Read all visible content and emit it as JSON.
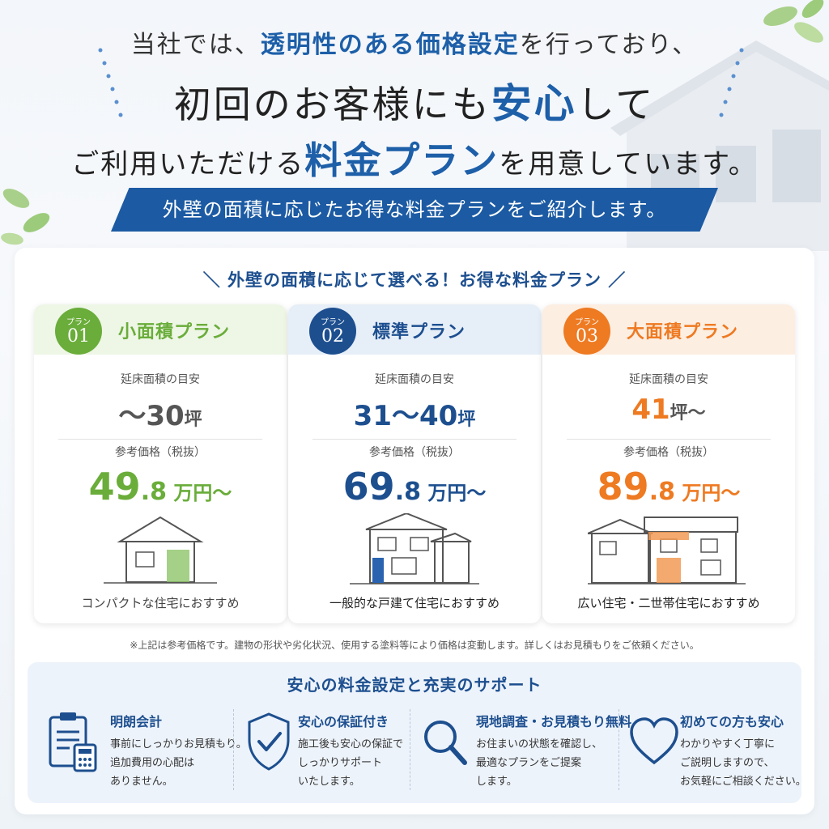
{
  "hero": {
    "line1_pre": "当社では、",
    "line1_hl": "透明性のある価格設定",
    "line1_post": "を行っており、",
    "line2_pre": "初回のお客様にも",
    "line2_hl": "安心",
    "line2_post": "して",
    "line3_pre": "ご利用いただける",
    "line3_hl": "料金プラン",
    "line3_post": "を用意しています。",
    "ribbon": "外壁の面積に応じたお得な料金プランをご紹介します。"
  },
  "plans_section": {
    "title": "＼ 外壁の面積に応じて選べる！お得な料金プラン ／",
    "plans": [
      {
        "badge_small": "プラン",
        "badge_num": "01",
        "name": "小面積プラン",
        "area_label": "延床面積の目安",
        "area_pre": "～",
        "area_num": "30",
        "area_unit": "坪",
        "area_post": "",
        "price_label": "参考価格（税抜）",
        "price_int": "49",
        "price_dec": ".8",
        "price_unit": " 万円～",
        "recommend": "コンパクトな住宅におすすめ",
        "color": "#6aad3a",
        "head_bg": "#eef6e6"
      },
      {
        "badge_small": "プラン",
        "badge_num": "02",
        "name": "標準プラン",
        "area_label": "延床面積の目安",
        "area_pre": "",
        "area_num": "31～40",
        "area_unit": "坪",
        "area_post": "",
        "price_label": "参考価格（税抜）",
        "price_int": "69",
        "price_dec": ".8",
        "price_unit": " 万円～",
        "recommend": "一般的な戸建て住宅におすすめ",
        "color": "#1d4f8f",
        "head_bg": "#e6eef8"
      },
      {
        "badge_small": "プラン",
        "badge_num": "03",
        "name": "大面積プラン",
        "area_label": "延床面積の目安",
        "area_pre": "",
        "area_num": "41",
        "area_unit": "坪",
        "area_post": "～",
        "price_label": "参考価格（税抜）",
        "price_int": "89",
        "price_dec": ".8",
        "price_unit": " 万円～",
        "recommend": "広い住宅・二世帯住宅におすすめ",
        "color": "#ee7a22",
        "head_bg": "#fdeee2"
      }
    ],
    "note": "※上記は参考価格です。建物の形状や劣化状況、使用する塗料等により価格は変動します。詳しくはお見積もりをご依頼ください。"
  },
  "support": {
    "title": "安心の料金設定と充実のサポート",
    "items": [
      {
        "icon": "clipboard-calculator-icon",
        "head": "明朗会計",
        "lines": [
          "事前にしっかりお見積もり。",
          "追加費用の心配は",
          "ありません。"
        ]
      },
      {
        "icon": "shield-check-icon",
        "head": "安心の保証付き",
        "lines": [
          "施工後も安心の保証で",
          "しっかりサポート",
          "いたします。"
        ]
      },
      {
        "icon": "magnifier-icon",
        "head": "現地調査・お見積もり無料",
        "lines": [
          "お住まいの状態を確認し、",
          "最適なプランをご提案",
          "します。"
        ]
      },
      {
        "icon": "heart-icon",
        "head": "初めての方も安心",
        "lines": [
          "わかりやすく丁寧に",
          "ご説明しますので、",
          "お気軽にご相談ください。"
        ]
      }
    ]
  },
  "colors": {
    "brand_blue": "#1d5fa8",
    "ribbon_blue": "#1c5ba3",
    "green": "#6aad3a",
    "orange": "#ee7a22"
  }
}
